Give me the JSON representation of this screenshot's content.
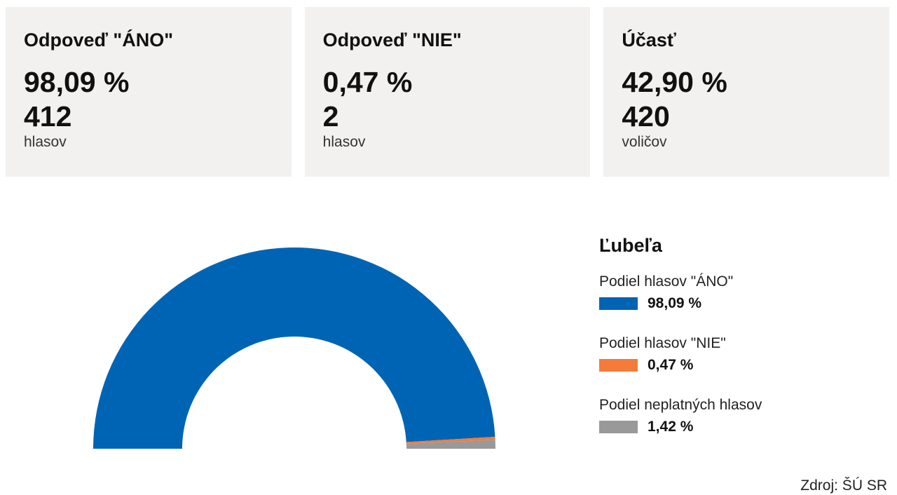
{
  "cards": [
    {
      "title": "Odpoveď \"ÁNO\"",
      "percent": "98,09 %",
      "count": "412",
      "unit": "hlasov"
    },
    {
      "title": "Odpoveď \"NIE\"",
      "percent": "0,47 %",
      "count": "2",
      "unit": "hlasov"
    },
    {
      "title": "Účasť",
      "percent": "42,90 %",
      "count": "420",
      "unit": "voličov"
    }
  ],
  "chart_data": {
    "type": "pie",
    "subtype": "semi-donut",
    "title": "Ľubeľa",
    "series": [
      {
        "name": "Podiel hlasov \"ÁNO\"",
        "value": 98.09,
        "label": "98,09 %",
        "color": "#0064b4"
      },
      {
        "name": "Podiel hlasov \"NIE\"",
        "value": 0.47,
        "label": "0,47 %",
        "color": "#f47b3a"
      },
      {
        "name": "Podiel neplatných hlasov",
        "value": 1.42,
        "label": "1,42 %",
        "color": "#999999"
      }
    ],
    "legend_position": "right"
  },
  "source": "Zdroj: ŠÚ SR"
}
